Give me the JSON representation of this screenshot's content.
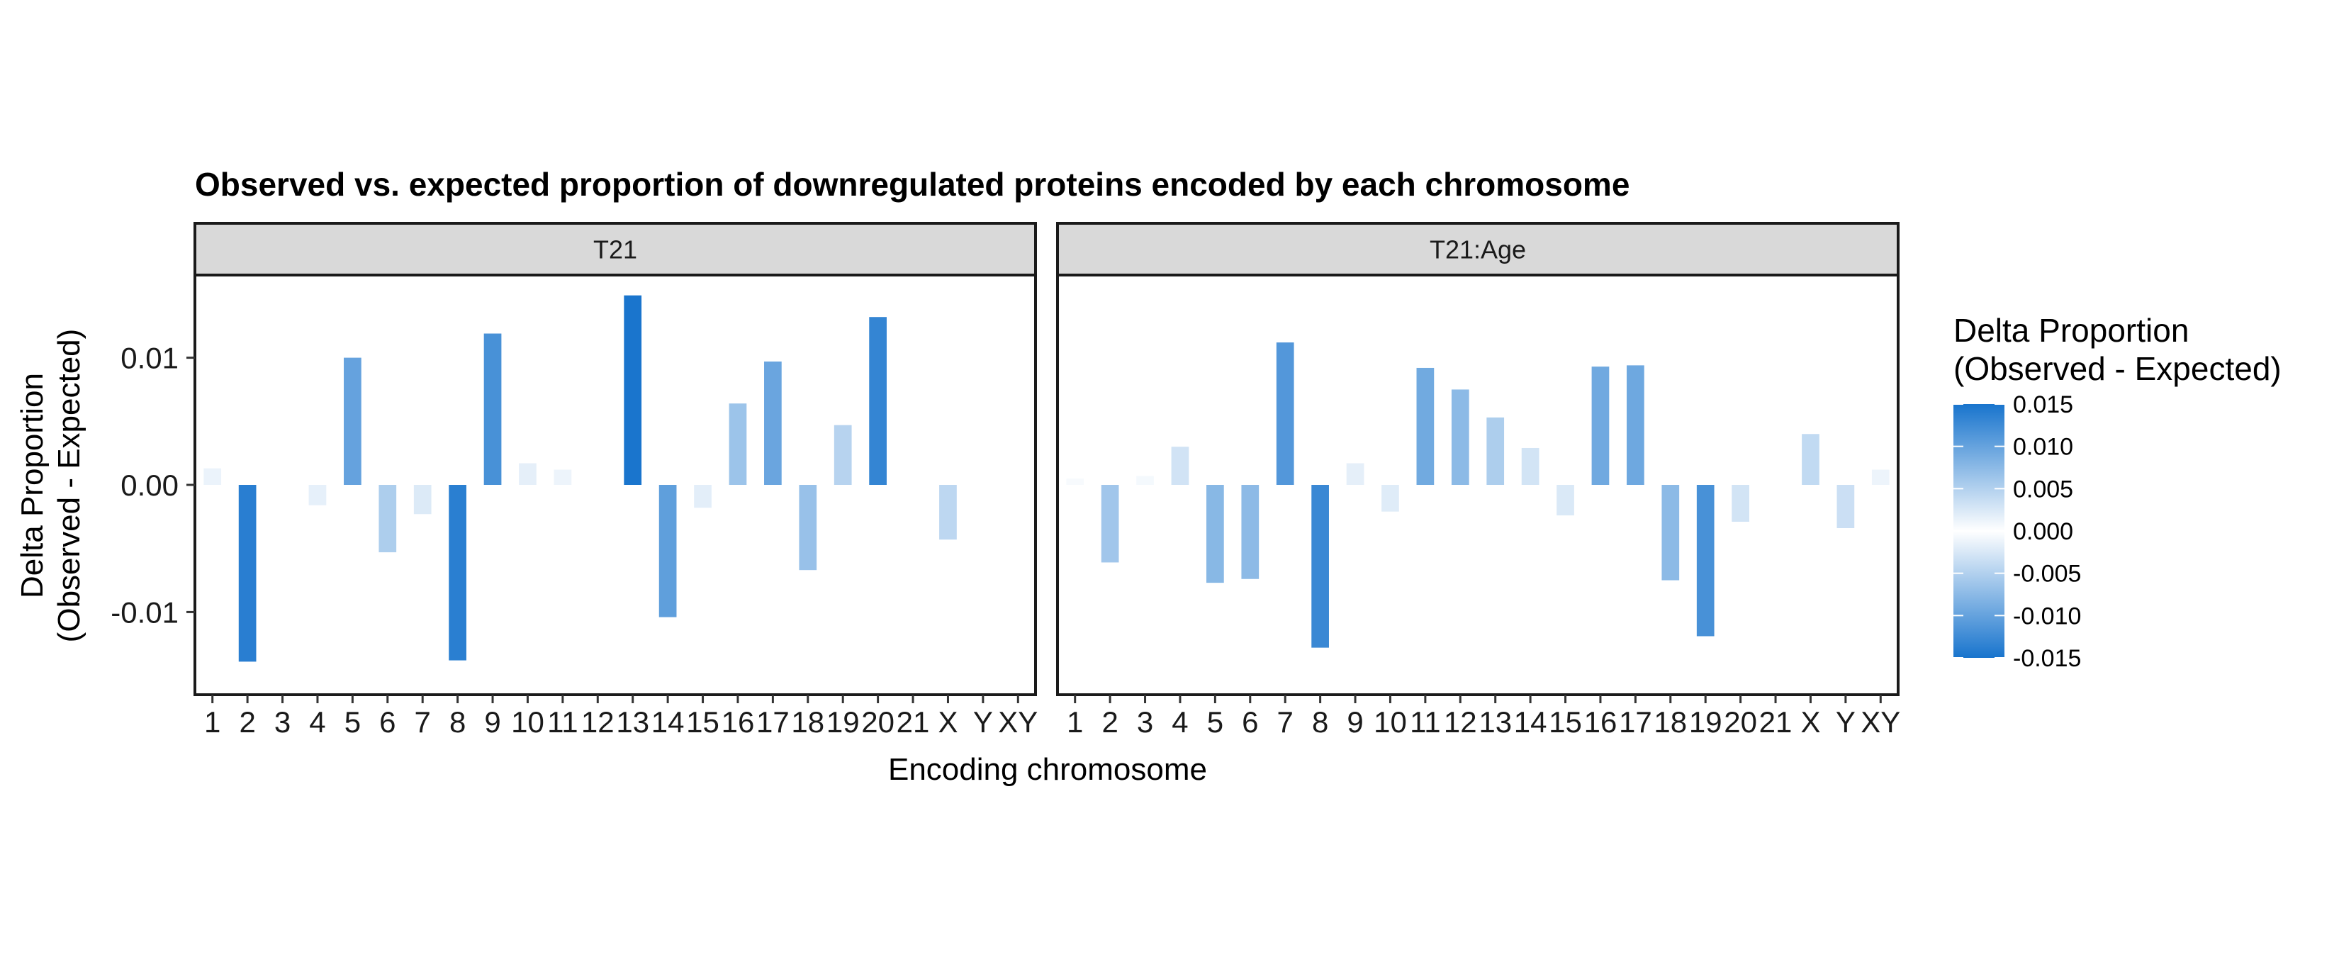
{
  "chart_data": {
    "type": "bar",
    "title": "Observed vs. expected proportion of downregulated proteins encoded by each chromosome",
    "xlabel": "Encoding chromosome",
    "ylabel_line1": "Delta Proportion",
    "ylabel_line2": "(Observed - Expected)",
    "categories": [
      "1",
      "2",
      "3",
      "4",
      "5",
      "6",
      "7",
      "8",
      "9",
      "10",
      "11",
      "12",
      "13",
      "14",
      "15",
      "16",
      "17",
      "18",
      "19",
      "20",
      "21",
      "X",
      "Y",
      "XY"
    ],
    "ylim": [
      -0.0165,
      0.0165
    ],
    "yticks": [
      0.01,
      0.0,
      -0.01
    ],
    "ytick_labels": [
      "0.01",
      "0.00",
      "-0.01"
    ],
    "grid": false,
    "legend_position": "right",
    "panels": [
      {
        "name": "T21",
        "values": [
          0.0013,
          -0.0139,
          null,
          -0.0016,
          0.01,
          -0.0053,
          -0.0023,
          -0.0138,
          0.0119,
          0.0017,
          0.0012,
          null,
          0.0149,
          -0.0104,
          -0.0018,
          0.0064,
          0.0097,
          -0.0067,
          0.0047,
          0.0132,
          null,
          -0.0043,
          null,
          null
        ]
      },
      {
        "name": "T21:Age",
        "values": [
          0.0005,
          -0.0061,
          0.0007,
          0.003,
          -0.0077,
          -0.0074,
          0.0112,
          -0.0128,
          0.0017,
          -0.0021,
          0.0092,
          0.0075,
          0.0053,
          0.0029,
          -0.0024,
          0.0093,
          0.0094,
          -0.0075,
          -0.0119,
          -0.0029,
          null,
          0.004,
          -0.0034,
          0.0012
        ]
      }
    ],
    "colorbar": {
      "title_line1": "Delta Proportion",
      "title_line2": "(Observed - Expected)",
      "ticks": [
        0.015,
        0.01,
        0.005,
        0.0,
        -0.005,
        -0.01,
        -0.015
      ],
      "tick_labels": [
        "0.015",
        "0.010",
        "0.005",
        "0.000",
        "-0.005",
        "-0.010",
        "-0.015"
      ],
      "color_extreme": "#1874CD",
      "color_mid": "#FFFFFF"
    },
    "strip_fill": "#D9D9D9"
  }
}
